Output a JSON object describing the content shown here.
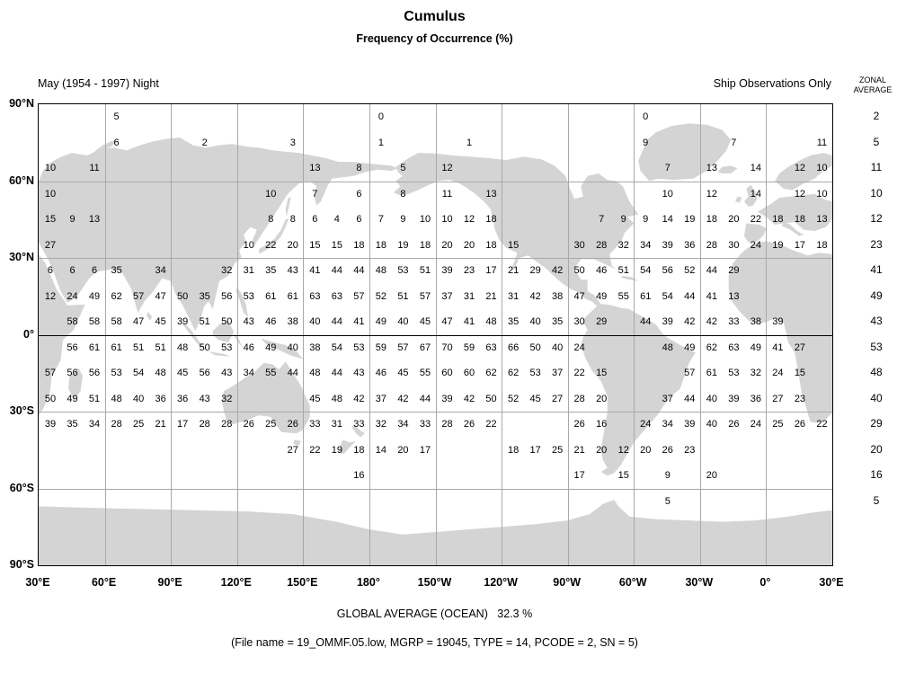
{
  "colors": {
    "background": "#ffffff",
    "land": "#d4d4d4",
    "grid_line": "#a8a8a8",
    "equator_line": "#000000",
    "border": "#000000",
    "text": "#000000"
  },
  "header": {
    "title": "Cumulus",
    "subtitle": "Frequency of Occurrence (%)",
    "period_label": "May (1954 - 1997) Night",
    "ship_label": "Ship Observations Only",
    "zonal_header_line1": "ZONAL",
    "zonal_header_line2": "AVERAGE"
  },
  "footer": {
    "global_average": "GLOBAL AVERAGE (OCEAN)   32.3 %",
    "file_info": "(File name = 19_OMMF.05.low, MGRP = 19045, TYPE = 14, PCODE = 2, SN = 5)"
  },
  "chart_data": {
    "type": "heatmap",
    "title": "Cumulus",
    "subtitle": "Frequency of Occurrence (%)",
    "units": "percent frequency of occurrence",
    "period": "May (1954 - 1997) Night",
    "source": "Ship Observations Only",
    "global_average_ocean_pct": 32.3,
    "x_tick_labels": [
      "30°E",
      "60°E",
      "90°E",
      "120°E",
      "150°E",
      "180°",
      "150°W",
      "120°W",
      "90°W",
      "60°W",
      "30°W",
      "0°",
      "30°E"
    ],
    "y_tick_labels": [
      "90°N",
      "60°N",
      "30°N",
      "0°",
      "30°S",
      "60°S",
      "90°S"
    ],
    "lon_start_deg_east": 30,
    "lon_cell_deg": 10,
    "lat_cell_deg": 10,
    "grid_columns": 36,
    "zonal_average_header": "ZONAL AVERAGE",
    "rows": [
      {
        "lat_band": "85N",
        "zonal_average": 2,
        "values": {
          "3": 5,
          "15": 0,
          "27": 0
        }
      },
      {
        "lat_band": "75N",
        "zonal_average": 5,
        "values": {
          "3": 6,
          "7": 2,
          "11": 3,
          "15": 1,
          "19": 1,
          "27": 9,
          "31": 7,
          "35": 11
        }
      },
      {
        "lat_band": "65N",
        "zonal_average": 11,
        "values": {
          "0": 10,
          "2": 11,
          "12": 13,
          "14": 8,
          "16": 5,
          "18": 12,
          "28": 7,
          "30": 13,
          "32": 14,
          "34": 12,
          "35": 10
        }
      },
      {
        "lat_band": "55N",
        "zonal_average": 10,
        "values": {
          "0": 10,
          "10": 10,
          "12": 7,
          "14": 6,
          "16": 8,
          "18": 11,
          "20": 13,
          "28": 10,
          "30": 12,
          "32": 14,
          "34": 12,
          "35": 10
        }
      },
      {
        "lat_band": "45N",
        "zonal_average": 12,
        "values": {
          "0": 15,
          "1": 9,
          "2": 13,
          "10": 8,
          "11": 8,
          "12": 6,
          "13": 4,
          "14": 6,
          "15": 7,
          "16": 9,
          "17": 10,
          "18": 10,
          "19": 12,
          "20": 18,
          "25": 7,
          "26": 9,
          "27": 9,
          "28": 14,
          "29": 19,
          "30": 18,
          "31": 20,
          "32": 22,
          "33": 18,
          "34": 18,
          "35": 13
        }
      },
      {
        "lat_band": "35N",
        "zonal_average": 23,
        "values": {
          "0": 27,
          "9": 10,
          "10": 22,
          "11": 20,
          "12": 15,
          "13": 15,
          "14": 18,
          "15": 18,
          "16": 19,
          "17": 18,
          "18": 20,
          "19": 20,
          "20": 18,
          "21": 15,
          "24": 30,
          "25": 28,
          "26": 32,
          "27": 34,
          "28": 39,
          "29": 36,
          "30": 28,
          "31": 30,
          "32": 24,
          "33": 19,
          "34": 17,
          "35": 18
        }
      },
      {
        "lat_band": "25N",
        "zonal_average": 41,
        "values": {
          "0": 6,
          "1": 6,
          "2": 6,
          "3": 35,
          "5": 34,
          "8": 32,
          "9": 31,
          "10": 35,
          "11": 43,
          "12": 41,
          "13": 44,
          "14": 44,
          "15": 48,
          "16": 53,
          "17": 51,
          "18": 39,
          "19": 23,
          "20": 17,
          "21": 21,
          "22": 29,
          "23": 42,
          "24": 50,
          "25": 46,
          "26": 51,
          "27": 54,
          "28": 56,
          "29": 52,
          "30": 44,
          "31": 29
        }
      },
      {
        "lat_band": "15N",
        "zonal_average": 49,
        "values": {
          "0": 12,
          "1": 24,
          "2": 49,
          "3": 62,
          "4": 57,
          "5": 47,
          "6": 50,
          "7": 35,
          "8": 56,
          "9": 53,
          "10": 61,
          "11": 61,
          "12": 63,
          "13": 63,
          "14": 57,
          "15": 52,
          "16": 51,
          "17": 57,
          "18": 37,
          "19": 31,
          "20": 21,
          "21": 31,
          "22": 42,
          "23": 38,
          "24": 47,
          "25": 49,
          "26": 55,
          "27": 61,
          "28": 54,
          "29": 44,
          "30": 41,
          "31": 13
        }
      },
      {
        "lat_band": "5N",
        "zonal_average": 43,
        "values": {
          "1": 58,
          "2": 58,
          "3": 58,
          "4": 47,
          "5": 45,
          "6": 39,
          "7": 51,
          "8": 50,
          "9": 43,
          "10": 46,
          "11": 38,
          "12": 40,
          "13": 44,
          "14": 41,
          "15": 49,
          "16": 40,
          "17": 45,
          "18": 47,
          "19": 41,
          "20": 48,
          "21": 35,
          "22": 40,
          "23": 35,
          "24": 30,
          "25": 29,
          "27": 44,
          "28": 39,
          "29": 42,
          "30": 42,
          "31": 33,
          "32": 38,
          "33": 39
        }
      },
      {
        "lat_band": "5S",
        "zonal_average": 53,
        "values": {
          "1": 56,
          "2": 61,
          "3": 61,
          "4": 51,
          "5": 51,
          "6": 48,
          "7": 50,
          "8": 53,
          "9": 46,
          "10": 49,
          "11": 40,
          "12": 38,
          "13": 54,
          "14": 53,
          "15": 59,
          "16": 57,
          "17": 67,
          "18": 70,
          "19": 59,
          "20": 63,
          "21": 66,
          "22": 50,
          "23": 40,
          "24": 24,
          "28": 48,
          "29": 49,
          "30": 62,
          "31": 63,
          "32": 49,
          "33": 41,
          "34": 27
        }
      },
      {
        "lat_band": "15S",
        "zonal_average": 48,
        "values": {
          "0": 57,
          "1": 56,
          "2": 56,
          "3": 53,
          "4": 54,
          "5": 48,
          "6": 45,
          "7": 56,
          "8": 43,
          "9": 34,
          "10": 55,
          "11": 44,
          "12": 48,
          "13": 44,
          "14": 43,
          "15": 46,
          "16": 45,
          "17": 55,
          "18": 60,
          "19": 60,
          "20": 62,
          "21": 62,
          "22": 53,
          "23": 37,
          "24": 22,
          "25": 15,
          "29": 57,
          "30": 61,
          "31": 53,
          "32": 32,
          "33": 24,
          "34": 15
        }
      },
      {
        "lat_band": "25S",
        "zonal_average": 40,
        "values": {
          "0": 50,
          "1": 49,
          "2": 51,
          "3": 48,
          "4": 40,
          "5": 36,
          "6": 36,
          "7": 43,
          "8": 32,
          "12": 45,
          "13": 48,
          "14": 42,
          "15": 37,
          "16": 42,
          "17": 44,
          "18": 39,
          "19": 42,
          "20": 50,
          "21": 52,
          "22": 45,
          "23": 27,
          "24": 28,
          "25": 20,
          "28": 37,
          "29": 44,
          "30": 40,
          "31": 39,
          "32": 36,
          "33": 27,
          "34": 23
        }
      },
      {
        "lat_band": "35S",
        "zonal_average": 29,
        "values": {
          "0": 39,
          "1": 35,
          "2": 34,
          "3": 28,
          "4": 25,
          "5": 21,
          "6": 17,
          "7": 28,
          "8": 28,
          "9": 26,
          "10": 25,
          "11": 26,
          "12": 33,
          "13": 31,
          "14": 33,
          "15": 32,
          "16": 34,
          "17": 33,
          "18": 28,
          "19": 26,
          "20": 22,
          "24": 26,
          "25": 16,
          "27": 24,
          "28": 34,
          "29": 39,
          "30": 40,
          "31": 26,
          "32": 24,
          "33": 25,
          "34": 26,
          "35": 22
        }
      },
      {
        "lat_band": "45S",
        "zonal_average": 20,
        "values": {
          "11": 27,
          "12": 22,
          "13": 19,
          "14": 18,
          "15": 14,
          "16": 20,
          "17": 17,
          "21": 18,
          "22": 17,
          "23": 25,
          "24": 21,
          "25": 20,
          "26": 12,
          "27": 20,
          "28": 26,
          "29": 23
        }
      },
      {
        "lat_band": "55S",
        "zonal_average": 16,
        "values": {
          "14": 16,
          "24": 17,
          "26": 15,
          "28": 9,
          "30": 20
        }
      },
      {
        "lat_band": "65S",
        "zonal_average": 5,
        "values": {
          "28": 5
        }
      }
    ]
  }
}
